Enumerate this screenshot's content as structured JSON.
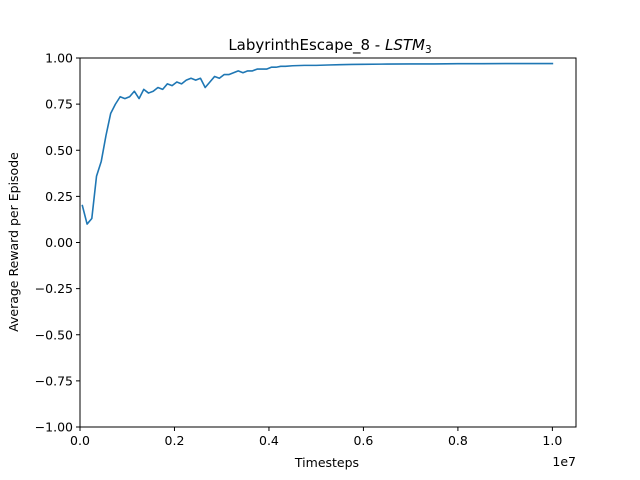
{
  "chart_data": {
    "type": "line",
    "title_main": "LabyrinthEscape_8 - ",
    "title_italic": "LSTM",
    "title_sub": "3",
    "xlabel": "Timesteps",
    "ylabel": "Average Reward per Episode",
    "x_offset_label": "1e7",
    "xlim": [
      0,
      10500000
    ],
    "ylim": [
      -1.0,
      1.0
    ],
    "x_ticks": [
      0,
      2000000,
      4000000,
      6000000,
      8000000,
      10000000
    ],
    "x_tick_labels": [
      "0.0",
      "0.2",
      "0.4",
      "0.6",
      "0.8",
      "1.0"
    ],
    "y_ticks": [
      -1.0,
      -0.75,
      -0.5,
      -0.25,
      0.0,
      0.25,
      0.5,
      0.75,
      1.0
    ],
    "y_tick_labels": [
      "−1.00",
      "−0.75",
      "−0.50",
      "−0.25",
      "0.00",
      "0.25",
      "0.50",
      "0.75",
      "1.00"
    ],
    "grid": false,
    "series": [
      {
        "color": "#1f77b4",
        "x": [
          50000,
          150000,
          250000,
          350000,
          450000,
          550000,
          650000,
          750000,
          850000,
          950000,
          1050000,
          1150000,
          1250000,
          1350000,
          1450000,
          1550000,
          1650000,
          1750000,
          1850000,
          1950000,
          2050000,
          2150000,
          2250000,
          2350000,
          2450000,
          2550000,
          2650000,
          2750000,
          2850000,
          2950000,
          3050000,
          3150000,
          3250000,
          3350000,
          3450000,
          3550000,
          3650000,
          3750000,
          3850000,
          3950000,
          4050000,
          4150000,
          4250000,
          4350000,
          4500000,
          4750000,
          5000000,
          5250000,
          5500000,
          5750000,
          6000000,
          6500000,
          7000000,
          7500000,
          8000000,
          8500000,
          9000000,
          9500000,
          10000000
        ],
        "y": [
          0.2,
          0.1,
          0.13,
          0.36,
          0.44,
          0.58,
          0.7,
          0.75,
          0.79,
          0.78,
          0.79,
          0.82,
          0.78,
          0.83,
          0.81,
          0.82,
          0.84,
          0.83,
          0.86,
          0.85,
          0.87,
          0.86,
          0.88,
          0.89,
          0.88,
          0.89,
          0.84,
          0.87,
          0.9,
          0.89,
          0.91,
          0.91,
          0.92,
          0.93,
          0.92,
          0.93,
          0.93,
          0.94,
          0.94,
          0.94,
          0.95,
          0.95,
          0.955,
          0.955,
          0.958,
          0.96,
          0.96,
          0.962,
          0.964,
          0.965,
          0.966,
          0.967,
          0.968,
          0.968,
          0.969,
          0.969,
          0.97,
          0.97,
          0.97
        ]
      }
    ]
  }
}
